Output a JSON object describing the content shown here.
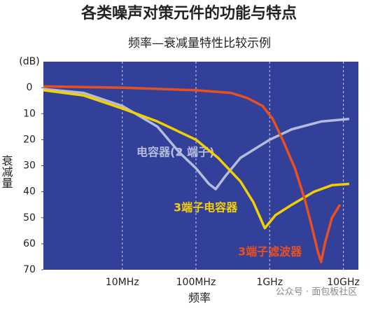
{
  "chart_data": {
    "type": "line",
    "title": "各类噪声对策元件的功能与特点",
    "subtitle": "频率—衰减量特性比较示例",
    "x_label": "频率",
    "y_label": "衰减量",
    "y_unit": "(dB)",
    "watermark": "公众号 · 面包板社区",
    "x_scale": "log",
    "y_inverted": true,
    "xlim": [
      0.85,
      16000
    ],
    "xticks": [
      {
        "value": 10,
        "label": "10MHz"
      },
      {
        "value": 100,
        "label": "100MHz"
      },
      {
        "value": 1000,
        "label": "1GHz"
      },
      {
        "value": 10000,
        "label": "10GHz"
      }
    ],
    "ylim": [
      -10,
      70
    ],
    "yticks": [
      0,
      10,
      20,
      30,
      40,
      50,
      60,
      70
    ],
    "grid": true,
    "background": "#33409a",
    "series": [
      {
        "name": "电容器(2 端子)",
        "color": "#b4bbdb",
        "x": [
          0.85,
          3,
          10,
          30,
          60,
          100,
          150,
          185,
          250,
          400,
          1000,
          2000,
          5000,
          12000
        ],
        "values": [
          0.5,
          2,
          7,
          15,
          25,
          31,
          37,
          39,
          34,
          27,
          20,
          16,
          13,
          12
        ]
      },
      {
        "name": "3端子电容器",
        "color": "#f5d000",
        "x": [
          0.85,
          3,
          10,
          30,
          100,
          200,
          400,
          600,
          860,
          1200,
          2000,
          4000,
          7000,
          12000
        ],
        "values": [
          1,
          3,
          8,
          13,
          20,
          27,
          36,
          44,
          54,
          49,
          45,
          40,
          37.5,
          37
        ]
      },
      {
        "name": "3端子滤波器",
        "color": "#e8501e",
        "x": [
          0.85,
          10,
          100,
          300,
          500,
          800,
          1100,
          1500,
          2200,
          3000,
          3700,
          4500,
          5000,
          5600,
          7000,
          9000
        ],
        "values": [
          -0.5,
          0,
          1,
          2,
          4,
          7,
          12,
          20,
          31,
          43,
          53,
          63,
          67,
          60,
          50,
          45
        ]
      }
    ]
  }
}
